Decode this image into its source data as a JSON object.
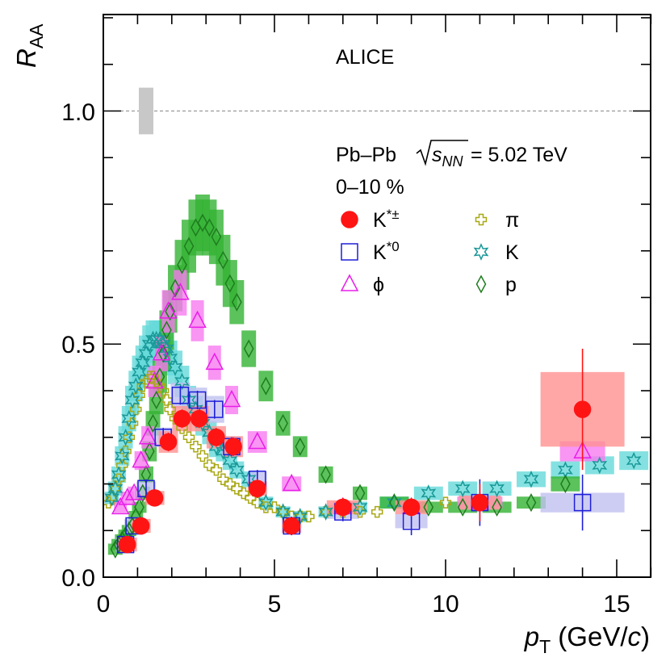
{
  "chart_data": {
    "type": "scatter",
    "experiment_label": "ALICE",
    "system_label": "Pb–Pb",
    "energy_symbol": "s",
    "energy_subscript": "NN",
    "energy_value": "= 5.02 TeV",
    "centrality_label": "0–10 %",
    "ylabel": "R",
    "ylabel_sub": "AA",
    "xlabel_var": "p",
    "xlabel_sub": "T",
    "xlabel_unit_open": " (GeV/",
    "xlabel_unit_c": "c",
    "xlabel_unit_close": ")",
    "xlim": [
      0,
      16
    ],
    "ylim": [
      0,
      1.2
    ],
    "x_ticks": [
      0,
      5,
      10,
      15
    ],
    "x_tick_labels": [
      "0",
      "5",
      "10",
      "15"
    ],
    "y_ticks": [
      0,
      0.5,
      1.0
    ],
    "y_tick_labels": [
      "0.0",
      "0.5",
      "1.0"
    ],
    "reference_line_y": 1.0,
    "normalization_box": {
      "x": 1.25,
      "y_low": 0.95,
      "y_high": 1.05
    },
    "legend": [
      {
        "key": "kstar_pm",
        "base": "K",
        "sup": "*±",
        "column": 0,
        "row": 0
      },
      {
        "key": "kstar0",
        "base": "K",
        "sup": "*0",
        "column": 0,
        "row": 1
      },
      {
        "key": "phi",
        "base": "ϕ",
        "sup": "",
        "column": 0,
        "row": 2
      },
      {
        "key": "pi",
        "base": "π",
        "sup": "",
        "column": 1,
        "row": 0
      },
      {
        "key": "k",
        "base": "K",
        "sup": "",
        "column": 1,
        "row": 1
      },
      {
        "key": "p",
        "base": "p",
        "sup": "",
        "column": 1,
        "row": 2
      }
    ],
    "series": [
      {
        "key": "pi",
        "name": "π",
        "marker": "cross",
        "color": "#a8a814",
        "fill": "none",
        "x": [
          0.15,
          0.25,
          0.35,
          0.45,
          0.55,
          0.65,
          0.75,
          0.85,
          0.95,
          1.05,
          1.15,
          1.25,
          1.35,
          1.45,
          1.55,
          1.65,
          1.75,
          1.85,
          1.95,
          2.1,
          2.3,
          2.5,
          2.7,
          2.9,
          3.1,
          3.3,
          3.5,
          3.7,
          3.9,
          4.1,
          4.3,
          4.5,
          4.75,
          5.0,
          5.25,
          5.5,
          5.75,
          6.0,
          6.5,
          7.0,
          7.5,
          8.0,
          9.0,
          10.0
        ],
        "y": [
          0.16,
          0.17,
          0.19,
          0.21,
          0.24,
          0.27,
          0.3,
          0.33,
          0.36,
          0.39,
          0.41,
          0.42,
          0.43,
          0.43,
          0.42,
          0.41,
          0.4,
          0.38,
          0.36,
          0.34,
          0.32,
          0.3,
          0.28,
          0.26,
          0.24,
          0.23,
          0.21,
          0.2,
          0.19,
          0.18,
          0.17,
          0.16,
          0.15,
          0.15,
          0.14,
          0.13,
          0.13,
          0.13,
          0.14,
          0.14,
          0.14,
          0.14,
          0.15,
          0.16
        ]
      },
      {
        "key": "k",
        "name": "K",
        "marker": "star",
        "color": "#1a9898",
        "fill": "none",
        "sys_color": "#66dada",
        "x": [
          0.25,
          0.35,
          0.45,
          0.55,
          0.65,
          0.75,
          0.85,
          0.95,
          1.05,
          1.15,
          1.25,
          1.35,
          1.45,
          1.55,
          1.65,
          1.75,
          1.85,
          1.95,
          2.1,
          2.3,
          2.5,
          2.7,
          2.9,
          3.1,
          3.3,
          3.5,
          3.7,
          3.9,
          4.25,
          4.75,
          5.25,
          5.75,
          6.5,
          7.5,
          8.5,
          9.5,
          10.5,
          11.5,
          12.5,
          13.5,
          14.5,
          15.5
        ],
        "y": [
          0.17,
          0.19,
          0.22,
          0.26,
          0.3,
          0.34,
          0.38,
          0.41,
          0.44,
          0.46,
          0.48,
          0.5,
          0.51,
          0.51,
          0.51,
          0.5,
          0.49,
          0.47,
          0.45,
          0.42,
          0.38,
          0.36,
          0.33,
          0.31,
          0.28,
          0.27,
          0.25,
          0.23,
          0.21,
          0.16,
          0.14,
          0.13,
          0.14,
          0.15,
          0.16,
          0.18,
          0.19,
          0.19,
          0.21,
          0.23,
          0.24,
          0.25
        ]
      },
      {
        "key": "p",
        "name": "p",
        "marker": "diamond",
        "color": "#1e7d1e",
        "fill": "none",
        "sys_color": "#33b333",
        "x": [
          0.35,
          0.45,
          0.55,
          0.65,
          0.75,
          0.85,
          0.95,
          1.05,
          1.15,
          1.25,
          1.35,
          1.45,
          1.55,
          1.65,
          1.75,
          1.85,
          1.95,
          2.1,
          2.3,
          2.5,
          2.7,
          2.9,
          3.1,
          3.3,
          3.5,
          3.7,
          3.9,
          4.25,
          4.75,
          5.25,
          5.75,
          6.5,
          7.5,
          8.5,
          9.5,
          10.5,
          11.5,
          12.5,
          13.5
        ],
        "y": [
          0.06,
          0.07,
          0.08,
          0.09,
          0.1,
          0.11,
          0.13,
          0.15,
          0.18,
          0.22,
          0.27,
          0.33,
          0.38,
          0.43,
          0.48,
          0.53,
          0.57,
          0.62,
          0.67,
          0.71,
          0.75,
          0.76,
          0.75,
          0.73,
          0.68,
          0.63,
          0.59,
          0.49,
          0.41,
          0.33,
          0.28,
          0.22,
          0.18,
          0.16,
          0.15,
          0.15,
          0.15,
          0.16,
          0.2
        ]
      },
      {
        "key": "phi",
        "name": "ϕ",
        "marker": "triangle",
        "color": "#e81ee8",
        "fill": "none",
        "sys_color": "#f87bf0",
        "x": [
          0.5,
          0.7,
          0.9,
          1.1,
          1.3,
          1.5,
          1.7,
          1.9,
          2.25,
          2.75,
          3.25,
          3.75,
          4.5,
          5.5,
          7.0,
          9.0,
          11.0,
          14.0
        ],
        "y": [
          0.15,
          0.17,
          0.18,
          0.25,
          0.3,
          0.42,
          0.48,
          0.57,
          0.61,
          0.55,
          0.46,
          0.38,
          0.29,
          0.2,
          0.15,
          0.15,
          0.16,
          0.27
        ]
      },
      {
        "key": "kstar0",
        "name": "K*0",
        "marker": "square",
        "color": "#1f1fd9",
        "fill": "none",
        "sys_color": "#c1c1f0",
        "x": [
          0.65,
          0.9,
          1.25,
          1.75,
          2.25,
          2.75,
          3.25,
          3.75,
          4.5,
          5.5,
          7.0,
          9.0,
          11.0,
          14.0
        ],
        "y": [
          0.07,
          0.11,
          0.19,
          0.3,
          0.39,
          0.38,
          0.36,
          0.28,
          0.21,
          0.11,
          0.14,
          0.12,
          0.16,
          0.16
        ],
        "err": [
          0.01,
          0.01,
          0.02,
          0.02,
          0.02,
          0.02,
          0.02,
          0.02,
          0.02,
          0.02,
          0.02,
          0.03,
          0.05,
          0.06
        ]
      },
      {
        "key": "kstar_pm",
        "name": "K*±",
        "marker": "circle",
        "color": "#ff1414",
        "fill": "#ff1414",
        "sys_color": "#ff9191",
        "x": [
          0.7,
          1.1,
          1.5,
          1.9,
          2.3,
          2.8,
          3.3,
          3.8,
          4.5,
          5.5,
          7.0,
          9.0,
          11.0,
          14.0
        ],
        "y": [
          0.07,
          0.11,
          0.17,
          0.29,
          0.34,
          0.34,
          0.3,
          0.28,
          0.19,
          0.11,
          0.15,
          0.15,
          0.16,
          0.36
        ],
        "err": [
          0.01,
          0.01,
          0.01,
          0.02,
          0.02,
          0.02,
          0.02,
          0.02,
          0.02,
          0.01,
          0.02,
          0.02,
          0.04,
          0.13
        ]
      }
    ]
  }
}
